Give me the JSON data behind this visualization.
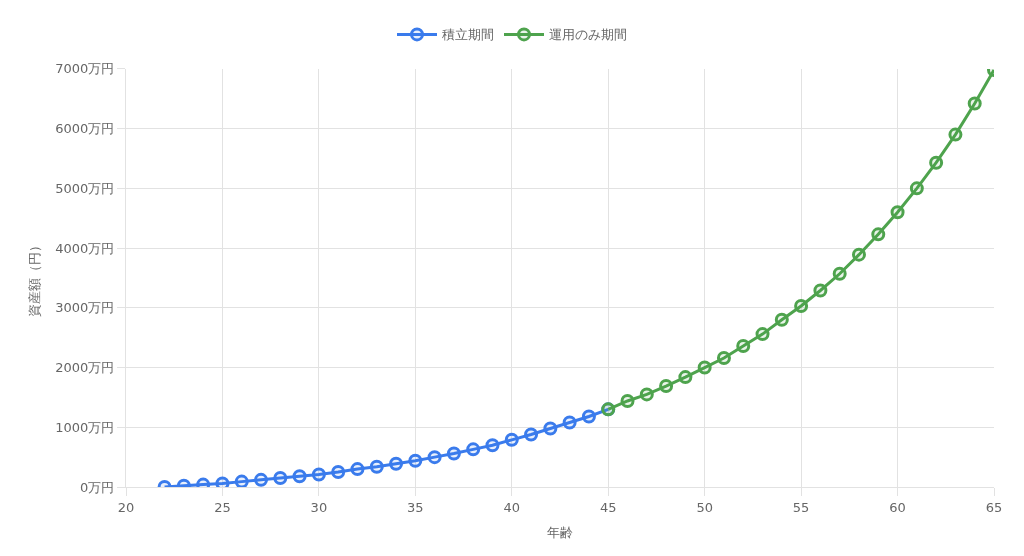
{
  "chart_data": {
    "type": "line",
    "xlabel": "年齢",
    "ylabel": "資産額（円）",
    "xlim": [
      20,
      65
    ],
    "xticks": [
      20,
      25,
      30,
      35,
      40,
      45,
      50,
      55,
      60,
      65
    ],
    "ylim": [
      0,
      7000
    ],
    "yticks": [
      {
        "value": 0,
        "label": "0万円"
      },
      {
        "value": 1000,
        "label": "1000万円"
      },
      {
        "value": 2000,
        "label": "2000万円"
      },
      {
        "value": 3000,
        "label": "3000万円"
      },
      {
        "value": 4000,
        "label": "4000万円"
      },
      {
        "value": 5000,
        "label": "5000万円"
      },
      {
        "value": 6000,
        "label": "6000万円"
      },
      {
        "value": 7000,
        "label": "7000万円"
      }
    ],
    "grid": true,
    "legend": "top",
    "marker": "circle",
    "line_style": "solid",
    "series": [
      {
        "name": "積立期間",
        "color": "#3a7bec",
        "x": [
          22,
          23,
          24,
          25,
          26,
          27,
          28,
          29,
          30,
          31,
          32,
          33,
          34,
          35,
          36,
          37,
          38,
          39,
          40,
          41,
          42,
          43,
          44,
          45
        ],
        "values": [
          0,
          20,
          40,
          60,
          90,
          120,
          150,
          180,
          210,
          250,
          300,
          340,
          390,
          440,
          500,
          560,
          630,
          700,
          790,
          880,
          980,
          1080,
          1180,
          1300
        ]
      },
      {
        "name": "運用のみ期間",
        "color": "#4ea34d",
        "x": [
          45,
          46,
          47,
          48,
          49,
          50,
          51,
          52,
          53,
          54,
          55,
          56,
          57,
          58,
          59,
          60,
          61,
          62,
          63,
          64,
          65
        ],
        "values": [
          1300,
          1440,
          1550,
          1690,
          1840,
          2000,
          2160,
          2360,
          2560,
          2800,
          3030,
          3290,
          3570,
          3890,
          4230,
          4600,
          5000,
          5430,
          5900,
          6420,
          6980
        ]
      }
    ]
  }
}
